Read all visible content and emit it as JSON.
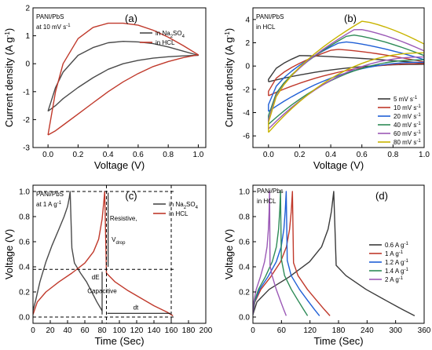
{
  "chart_data": [
    {
      "panel_label": "(a)",
      "type": "line",
      "annotation": [
        "PANI/PbS",
        "at 10 mV s",
        "-1"
      ],
      "xlabel": "Voltage (V)",
      "ylabel": "Current density (A g",
      "ylabel_sup": "-1",
      "ylabel_end": ")",
      "xlim": [
        -0.1,
        1.05
      ],
      "ylim": [
        -3,
        2
      ],
      "xticks": [
        "0.0",
        "0.2",
        "0.4",
        "0.6",
        "0.8",
        "1.0"
      ],
      "yticks": [
        "-3",
        "-2",
        "-1",
        "0",
        "1",
        "2"
      ],
      "legend_position": "top-right",
      "series": [
        {
          "name": "in Na",
          "name_sub": "2",
          "name_mid": "SO",
          "name_sub2": "4",
          "color": "#4a4a4a",
          "points": [
            [
              0.0,
              -1.7
            ],
            [
              0.05,
              -1.5
            ],
            [
              0.1,
              -1.25
            ],
            [
              0.2,
              -0.85
            ],
            [
              0.3,
              -0.5
            ],
            [
              0.4,
              -0.2
            ],
            [
              0.5,
              0.0
            ],
            [
              0.6,
              0.12
            ],
            [
              0.7,
              0.2
            ],
            [
              0.8,
              0.25
            ],
            [
              0.9,
              0.28
            ],
            [
              1.0,
              0.3
            ],
            [
              0.9,
              0.45
            ],
            [
              0.8,
              0.6
            ],
            [
              0.7,
              0.72
            ],
            [
              0.6,
              0.78
            ],
            [
              0.5,
              0.8
            ],
            [
              0.4,
              0.75
            ],
            [
              0.3,
              0.58
            ],
            [
              0.2,
              0.3
            ],
            [
              0.1,
              -0.3
            ],
            [
              0.05,
              -0.85
            ],
            [
              0.0,
              -1.7
            ]
          ]
        },
        {
          "name": "in HCL",
          "color": "#c0392b",
          "points": [
            [
              0.0,
              -2.55
            ],
            [
              0.05,
              -2.4
            ],
            [
              0.1,
              -2.2
            ],
            [
              0.2,
              -1.8
            ],
            [
              0.3,
              -1.4
            ],
            [
              0.4,
              -1.0
            ],
            [
              0.5,
              -0.65
            ],
            [
              0.6,
              -0.35
            ],
            [
              0.7,
              -0.1
            ],
            [
              0.8,
              0.08
            ],
            [
              0.9,
              0.22
            ],
            [
              1.0,
              0.32
            ],
            [
              0.9,
              0.65
            ],
            [
              0.8,
              0.95
            ],
            [
              0.7,
              1.2
            ],
            [
              0.6,
              1.38
            ],
            [
              0.5,
              1.45
            ],
            [
              0.4,
              1.45
            ],
            [
              0.3,
              1.3
            ],
            [
              0.2,
              0.9
            ],
            [
              0.1,
              0.0
            ],
            [
              0.05,
              -1.0
            ],
            [
              0.0,
              -2.55
            ]
          ]
        }
      ]
    },
    {
      "panel_label": "(b)",
      "type": "line",
      "annotation": [
        "PANI/PbS",
        "in HCL"
      ],
      "xlabel": "Voltage (V)",
      "ylabel": "Current density (A g",
      "ylabel_sup": "-1",
      "ylabel_end": ")",
      "xlim": [
        -0.1,
        1.0
      ],
      "ylim": [
        -7,
        5
      ],
      "xticks": [
        "0.0",
        "0.2",
        "0.4",
        "0.6",
        "0.8",
        "1.0"
      ],
      "yticks": [
        "-6",
        "-4",
        "-2",
        "0",
        "2",
        "4"
      ],
      "legend_position": "bottom-right",
      "series": [
        {
          "name": "5 mV s",
          "name_sup": "-1",
          "color": "#3a3a3a",
          "peak_v": 0.2,
          "peak": 0.9,
          "min": -1.35,
          "end": 0.25
        },
        {
          "name": "10 mV s",
          "name_sup": "-1",
          "color": "#c0392b",
          "peak_v": 0.42,
          "peak": 1.45,
          "min": -2.55,
          "end": 0.35
        },
        {
          "name": "20 mV s",
          "name_sup": "-1",
          "color": "#1f5fd6",
          "peak_v": 0.47,
          "peak": 2.1,
          "min": -3.9,
          "end": 0.55
        },
        {
          "name": "40 mV s",
          "name_sup": "-1",
          "color": "#2e8b57",
          "peak_v": 0.52,
          "peak": 2.7,
          "min": -5.0,
          "end": 0.9
        },
        {
          "name": "60 mV s",
          "name_sup": "-1",
          "color": "#9b59b6",
          "peak_v": 0.56,
          "peak": 3.2,
          "min": -5.4,
          "end": 1.3
        },
        {
          "name": "80 mV s",
          "name_sup": "-1",
          "color": "#c8b400",
          "peak_v": 0.6,
          "peak": 3.85,
          "min": -5.7,
          "end": 1.9
        }
      ]
    },
    {
      "panel_label": "(c)",
      "type": "line",
      "annotation": [
        "PANi/PbS",
        "at 1 A g",
        "-1"
      ],
      "notes": {
        "resistive": "Resistive,",
        "vdrop": "V",
        "vdrop_sub": "drop",
        "de": "dE",
        "capacitive": "Capacitive",
        "dt": "dt"
      },
      "xlabel": "Time (Sec)",
      "ylabel": "Voltage (V)",
      "xlim": [
        0,
        200
      ],
      "ylim": [
        -0.05,
        1.05
      ],
      "xticks": [
        "0",
        "20",
        "40",
        "60",
        "80",
        "100",
        "120",
        "140",
        "160",
        "180",
        "200"
      ],
      "yticks": [
        "0.0",
        "0.2",
        "0.4",
        "0.6",
        "0.8",
        "1.0"
      ],
      "legend_position": "top-right",
      "series": [
        {
          "name": "in Na",
          "name_sub": "2",
          "name_mid": "SO",
          "name_sub2": "4",
          "color": "#4a4a4a",
          "points": [
            [
              0,
              0.05
            ],
            [
              3,
              0.13
            ],
            [
              8,
              0.28
            ],
            [
              15,
              0.44
            ],
            [
              22,
              0.57
            ],
            [
              30,
              0.7
            ],
            [
              36,
              0.8
            ],
            [
              40,
              0.88
            ],
            [
              42,
              0.95
            ],
            [
              43,
              1.0
            ],
            [
              45,
              0.55
            ],
            [
              48,
              0.43
            ],
            [
              55,
              0.35
            ],
            [
              62,
              0.28
            ],
            [
              68,
              0.2
            ],
            [
              74,
              0.12
            ],
            [
              80,
              0.05
            ]
          ]
        },
        {
          "name": "in HCL",
          "color": "#c0392b",
          "points": [
            [
              0,
              0.02
            ],
            [
              5,
              0.12
            ],
            [
              15,
              0.2
            ],
            [
              30,
              0.28
            ],
            [
              45,
              0.35
            ],
            [
              60,
              0.43
            ],
            [
              70,
              0.52
            ],
            [
              76,
              0.62
            ],
            [
              80,
              0.78
            ],
            [
              82,
              0.92
            ],
            [
              83,
              1.0
            ],
            [
              85,
              0.35
            ],
            [
              95,
              0.28
            ],
            [
              110,
              0.21
            ],
            [
              125,
              0.15
            ],
            [
              140,
              0.09
            ],
            [
              155,
              0.04
            ],
            [
              162,
              0.01
            ]
          ]
        }
      ]
    },
    {
      "panel_label": "(d)",
      "type": "line",
      "annotation": [
        "PANi/Pbs",
        "in HCL"
      ],
      "xlabel": "Time (Sec)",
      "ylabel": "Voltage (V)",
      "xlim": [
        0,
        360
      ],
      "ylim": [
        -0.05,
        1.05
      ],
      "xticks": [
        "0",
        "60",
        "120",
        "180",
        "240",
        "300",
        "360"
      ],
      "yticks": [
        "0.0",
        "0.2",
        "0.4",
        "0.6",
        "0.8",
        "1.0"
      ],
      "legend_position": "middle-right",
      "series": [
        {
          "name": "0.6 A g",
          "name_sup": "-1",
          "color": "#3a3a3a",
          "t_peak": 170,
          "t_end": 340,
          "drop": 0.6
        },
        {
          "name": "1 A g",
          "name_sup": "-1",
          "color": "#c0392b",
          "t_peak": 83,
          "t_end": 162,
          "drop": 0.58
        },
        {
          "name": "1.2 A g",
          "name_sup": "-1",
          "color": "#1f5fd6",
          "t_peak": 70,
          "t_end": 140,
          "drop": 0.56
        },
        {
          "name": "1.4 A g",
          "name_sup": "-1",
          "color": "#2e8b57",
          "t_peak": 58,
          "t_end": 115,
          "drop": 0.55
        },
        {
          "name": "2 A g",
          "name_sup": "-1",
          "color": "#9b59b6",
          "t_peak": 35,
          "t_end": 70,
          "drop": 0.6
        }
      ]
    }
  ]
}
